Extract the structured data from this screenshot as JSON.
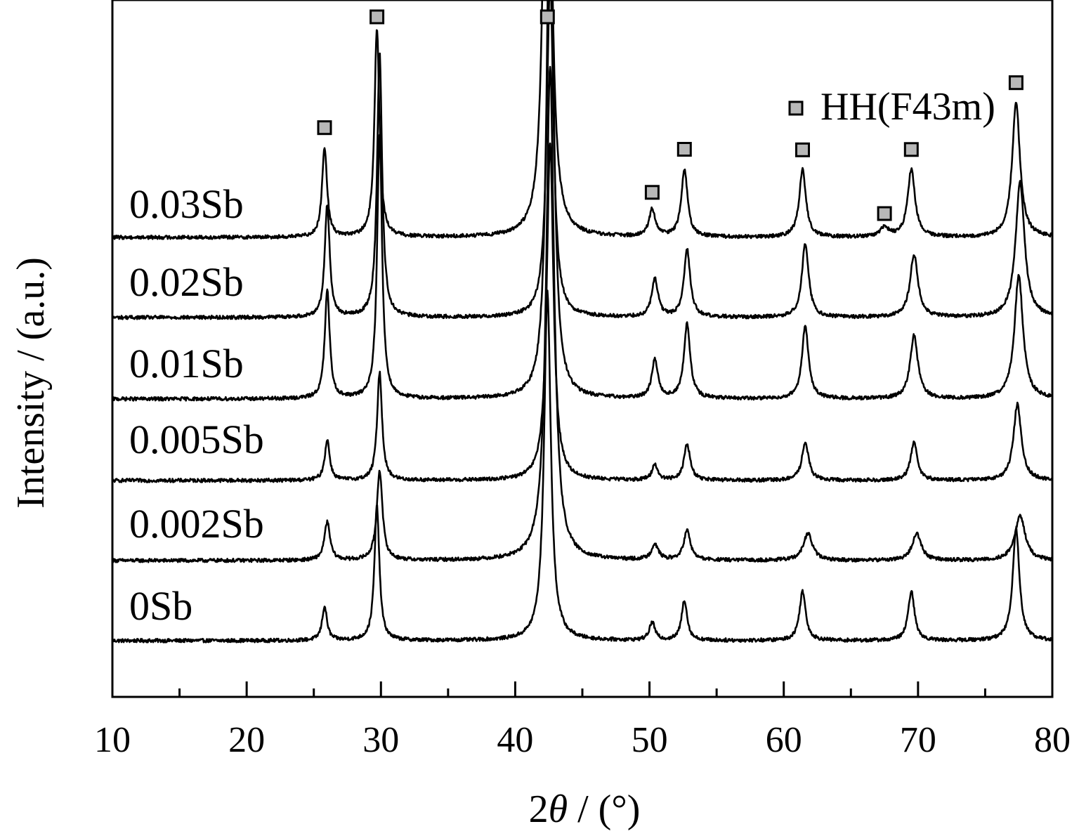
{
  "chart_data": {
    "type": "line",
    "xlabel_prefix": "2",
    "xlabel_theta": "θ",
    "xlabel_suffix": " / (°)",
    "ylabel": "Intensity / (a.u.)",
    "xlim": [
      10,
      80
    ],
    "xticks": [
      "10",
      "20",
      "30",
      "40",
      "50",
      "60",
      "70",
      "80"
    ],
    "xminor_step": 5,
    "yticks_shown": false,
    "grid": false,
    "legend": {
      "label": "HH(F43m)",
      "marker": "square",
      "marker_color": "#b8b8b8",
      "placement": "top-right"
    },
    "series": [
      {
        "name": "0Sb",
        "peaks": [
          {
            "x": 25.8,
            "h": 0.015,
            "w": 0.22
          },
          {
            "x": 29.7,
            "h": 0.06,
            "w": 0.22
          },
          {
            "x": 42.4,
            "h": 0.155,
            "w": 0.3
          },
          {
            "x": 50.2,
            "h": 0.008,
            "w": 0.25
          },
          {
            "x": 52.6,
            "h": 0.018,
            "w": 0.25
          },
          {
            "x": 61.4,
            "h": 0.022,
            "w": 0.28
          },
          {
            "x": 69.5,
            "h": 0.022,
            "w": 0.28
          },
          {
            "x": 77.3,
            "h": 0.05,
            "w": 0.3
          }
        ]
      },
      {
        "name": "0.002Sb",
        "peaks": [
          {
            "x": 26.0,
            "h": 0.017,
            "w": 0.25
          },
          {
            "x": 29.9,
            "h": 0.04,
            "w": 0.25
          },
          {
            "x": 42.6,
            "h": 0.22,
            "w": 0.35
          },
          {
            "x": 50.4,
            "h": 0.007,
            "w": 0.3
          },
          {
            "x": 52.8,
            "h": 0.013,
            "w": 0.3
          },
          {
            "x": 61.8,
            "h": 0.012,
            "w": 0.4
          },
          {
            "x": 69.9,
            "h": 0.012,
            "w": 0.4
          },
          {
            "x": 77.6,
            "h": 0.02,
            "w": 0.45
          }
        ]
      },
      {
        "name": "0.005Sb",
        "peaks": [
          {
            "x": 26.0,
            "h": 0.018,
            "w": 0.22
          },
          {
            "x": 29.9,
            "h": 0.048,
            "w": 0.22
          },
          {
            "x": 42.6,
            "h": 0.15,
            "w": 0.3
          },
          {
            "x": 50.4,
            "h": 0.007,
            "w": 0.25
          },
          {
            "x": 52.8,
            "h": 0.016,
            "w": 0.28
          },
          {
            "x": 61.6,
            "h": 0.017,
            "w": 0.3
          },
          {
            "x": 69.7,
            "h": 0.017,
            "w": 0.3
          },
          {
            "x": 77.4,
            "h": 0.034,
            "w": 0.35
          }
        ]
      },
      {
        "name": "0.01Sb",
        "peaks": [
          {
            "x": 26.0,
            "h": 0.048,
            "w": 0.22
          },
          {
            "x": 29.9,
            "h": 0.118,
            "w": 0.22
          },
          {
            "x": 42.6,
            "h": 0.245,
            "w": 0.3
          },
          {
            "x": 50.4,
            "h": 0.017,
            "w": 0.28
          },
          {
            "x": 52.8,
            "h": 0.033,
            "w": 0.28
          },
          {
            "x": 61.6,
            "h": 0.032,
            "w": 0.3
          },
          {
            "x": 69.7,
            "h": 0.028,
            "w": 0.35
          },
          {
            "x": 77.5,
            "h": 0.055,
            "w": 0.38
          }
        ]
      },
      {
        "name": "0.02Sb",
        "peaks": [
          {
            "x": 26.0,
            "h": 0.05,
            "w": 0.22
          },
          {
            "x": 29.9,
            "h": 0.118,
            "w": 0.22
          },
          {
            "x": 42.6,
            "h": 0.15,
            "w": 0.3
          },
          {
            "x": 50.4,
            "h": 0.017,
            "w": 0.28
          },
          {
            "x": 52.8,
            "h": 0.03,
            "w": 0.28
          },
          {
            "x": 61.6,
            "h": 0.033,
            "w": 0.3
          },
          {
            "x": 69.7,
            "h": 0.028,
            "w": 0.35
          },
          {
            "x": 77.6,
            "h": 0.06,
            "w": 0.4
          }
        ]
      },
      {
        "name": "0.03Sb",
        "peaks": [
          {
            "x": 25.8,
            "h": 0.04,
            "w": 0.22
          },
          {
            "x": 29.7,
            "h": 0.093,
            "w": 0.22
          },
          {
            "x": 42.4,
            "h": 0.29,
            "w": 0.3
          },
          {
            "x": 50.2,
            "h": 0.012,
            "w": 0.28
          },
          {
            "x": 52.6,
            "h": 0.03,
            "w": 0.28
          },
          {
            "x": 61.4,
            "h": 0.03,
            "w": 0.3
          },
          {
            "x": 67.5,
            "h": 0.004,
            "w": 0.4
          },
          {
            "x": 69.5,
            "h": 0.03,
            "w": 0.33
          },
          {
            "x": 77.3,
            "h": 0.06,
            "w": 0.35
          }
        ]
      }
    ],
    "hh_markers_x": [
      25.8,
      29.7,
      42.4,
      50.2,
      52.6,
      61.4,
      67.5,
      69.5,
      77.3
    ]
  }
}
